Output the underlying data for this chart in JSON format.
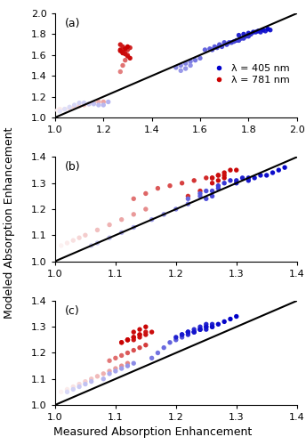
{
  "panels": [
    {
      "label": "(a)",
      "xlim": [
        1.0,
        2.0
      ],
      "ylim": [
        1.0,
        2.0
      ],
      "xticks": [
        1.0,
        1.2,
        1.4,
        1.6,
        1.8,
        2.0
      ],
      "yticks": [
        1.0,
        1.2,
        1.4,
        1.6,
        1.8,
        2.0
      ],
      "blue_x": [
        1.02,
        1.04,
        1.06,
        1.08,
        1.1,
        1.12,
        1.14,
        1.16,
        1.18,
        1.2,
        1.22,
        1.5,
        1.52,
        1.54,
        1.56,
        1.58,
        1.6,
        1.52,
        1.54,
        1.56,
        1.62,
        1.64,
        1.66,
        1.68,
        1.7,
        1.72,
        1.74,
        1.76,
        1.78,
        1.8,
        1.65,
        1.67,
        1.69,
        1.71,
        1.73,
        1.75,
        1.77,
        1.79,
        1.81,
        1.83,
        1.85,
        1.87,
        1.89,
        1.76,
        1.78,
        1.8,
        1.82,
        1.84,
        1.86,
        1.88
      ],
      "blue_y": [
        1.06,
        1.08,
        1.1,
        1.12,
        1.14,
        1.14,
        1.13,
        1.13,
        1.12,
        1.12,
        1.15,
        1.48,
        1.5,
        1.52,
        1.54,
        1.55,
        1.57,
        1.45,
        1.47,
        1.5,
        1.65,
        1.66,
        1.68,
        1.7,
        1.72,
        1.72,
        1.73,
        1.74,
        1.76,
        1.78,
        1.65,
        1.67,
        1.68,
        1.7,
        1.72,
        1.74,
        1.76,
        1.78,
        1.8,
        1.82,
        1.82,
        1.83,
        1.84,
        1.79,
        1.8,
        1.81,
        1.82,
        1.83,
        1.84,
        1.85
      ],
      "blue_time": [
        0.1,
        0.12,
        0.14,
        0.16,
        0.18,
        0.2,
        0.22,
        0.24,
        0.26,
        0.28,
        0.3,
        0.45,
        0.47,
        0.49,
        0.51,
        0.53,
        0.55,
        0.4,
        0.42,
        0.44,
        0.6,
        0.62,
        0.64,
        0.66,
        0.68,
        0.7,
        0.72,
        0.74,
        0.76,
        0.78,
        0.65,
        0.67,
        0.69,
        0.71,
        0.73,
        0.75,
        0.77,
        0.79,
        0.81,
        0.83,
        0.85,
        0.87,
        0.89,
        0.85,
        0.87,
        0.89,
        0.91,
        0.93,
        0.95,
        0.97
      ],
      "red_x": [
        1.01,
        1.02,
        1.04,
        1.06,
        1.08,
        1.1,
        1.12,
        1.14,
        1.16,
        1.18,
        1.2,
        1.27,
        1.28,
        1.29,
        1.3,
        1.28,
        1.29,
        1.3,
        1.31,
        1.28,
        1.27,
        1.27,
        1.28,
        1.29,
        1.3,
        1.31,
        1.28,
        1.27,
        1.29,
        1.3
      ],
      "red_y": [
        1.07,
        1.08,
        1.08,
        1.09,
        1.1,
        1.11,
        1.12,
        1.13,
        1.14,
        1.15,
        1.15,
        1.44,
        1.5,
        1.55,
        1.6,
        1.62,
        1.64,
        1.65,
        1.67,
        1.68,
        1.7,
        1.65,
        1.63,
        1.61,
        1.59,
        1.57,
        1.62,
        1.64,
        1.66,
        1.68
      ],
      "red_time": [
        0.05,
        0.08,
        0.11,
        0.15,
        0.18,
        0.21,
        0.24,
        0.27,
        0.3,
        0.33,
        0.36,
        0.5,
        0.55,
        0.6,
        0.65,
        0.7,
        0.75,
        0.8,
        0.85,
        0.88,
        0.9,
        0.92,
        0.93,
        0.94,
        0.95,
        0.96,
        0.97,
        0.98,
        0.99,
        1.0
      ]
    },
    {
      "label": "(b)",
      "xlim": [
        1.0,
        1.4
      ],
      "ylim": [
        1.0,
        1.4
      ],
      "xticks": [
        1.0,
        1.1,
        1.2,
        1.3,
        1.4
      ],
      "yticks": [
        1.0,
        1.1,
        1.2,
        1.3,
        1.4
      ],
      "blue_x": [
        1.06,
        1.07,
        1.09,
        1.11,
        1.13,
        1.16,
        1.18,
        1.2,
        1.22,
        1.22,
        1.24,
        1.24,
        1.25,
        1.26,
        1.27,
        1.27,
        1.28,
        1.29,
        1.3,
        1.31,
        1.32,
        1.3,
        1.32,
        1.33,
        1.34,
        1.35,
        1.36,
        1.37,
        1.38,
        1.25,
        1.26
      ],
      "blue_y": [
        1.06,
        1.07,
        1.09,
        1.11,
        1.13,
        1.16,
        1.18,
        1.2,
        1.22,
        1.24,
        1.25,
        1.26,
        1.27,
        1.27,
        1.28,
        1.29,
        1.3,
        1.31,
        1.31,
        1.32,
        1.32,
        1.3,
        1.31,
        1.32,
        1.33,
        1.33,
        1.34,
        1.35,
        1.36,
        1.24,
        1.25
      ],
      "blue_time": [
        0.2,
        0.23,
        0.26,
        0.3,
        0.35,
        0.4,
        0.45,
        0.5,
        0.55,
        0.58,
        0.62,
        0.65,
        0.68,
        0.71,
        0.74,
        0.76,
        0.79,
        0.82,
        0.85,
        0.87,
        0.9,
        0.88,
        0.9,
        0.92,
        0.93,
        0.94,
        0.95,
        0.96,
        0.97,
        0.7,
        0.72
      ],
      "red_x": [
        1.01,
        1.02,
        1.03,
        1.04,
        1.05,
        1.07,
        1.09,
        1.11,
        1.13,
        1.15,
        1.13,
        1.15,
        1.17,
        1.19,
        1.21,
        1.23,
        1.25,
        1.26,
        1.27,
        1.28,
        1.26,
        1.27,
        1.28,
        1.29,
        1.3,
        1.26,
        1.27,
        1.28,
        1.24,
        1.22
      ],
      "red_y": [
        1.06,
        1.07,
        1.08,
        1.09,
        1.1,
        1.12,
        1.14,
        1.16,
        1.18,
        1.2,
        1.24,
        1.26,
        1.28,
        1.29,
        1.3,
        1.31,
        1.32,
        1.32,
        1.33,
        1.33,
        1.32,
        1.33,
        1.34,
        1.35,
        1.35,
        1.3,
        1.31,
        1.32,
        1.27,
        1.25
      ],
      "red_time": [
        0.05,
        0.08,
        0.12,
        0.16,
        0.2,
        0.25,
        0.3,
        0.35,
        0.4,
        0.45,
        0.55,
        0.6,
        0.65,
        0.7,
        0.75,
        0.8,
        0.84,
        0.87,
        0.9,
        0.92,
        0.93,
        0.94,
        0.95,
        0.96,
        0.97,
        0.93,
        0.95,
        0.97,
        0.85,
        0.8
      ]
    },
    {
      "label": "(c)",
      "xlim": [
        1.0,
        1.4
      ],
      "ylim": [
        1.0,
        1.4
      ],
      "xticks": [
        1.0,
        1.1,
        1.2,
        1.3,
        1.4
      ],
      "yticks": [
        1.0,
        1.1,
        1.2,
        1.3,
        1.4
      ],
      "blue_x": [
        1.02,
        1.03,
        1.04,
        1.05,
        1.06,
        1.08,
        1.09,
        1.1,
        1.11,
        1.12,
        1.13,
        1.16,
        1.17,
        1.18,
        1.19,
        1.2,
        1.21,
        1.21,
        1.22,
        1.23,
        1.24,
        1.25,
        1.21,
        1.22,
        1.23,
        1.24,
        1.25,
        1.26,
        1.22,
        1.23,
        1.24,
        1.25,
        1.26,
        1.2,
        1.21,
        1.22,
        1.23,
        1.24,
        1.25,
        1.26,
        1.27,
        1.28,
        1.29,
        1.3
      ],
      "blue_y": [
        1.05,
        1.06,
        1.07,
        1.08,
        1.09,
        1.1,
        1.12,
        1.13,
        1.14,
        1.15,
        1.16,
        1.18,
        1.2,
        1.22,
        1.24,
        1.25,
        1.26,
        1.27,
        1.28,
        1.28,
        1.29,
        1.3,
        1.27,
        1.28,
        1.29,
        1.3,
        1.31,
        1.31,
        1.27,
        1.28,
        1.29,
        1.29,
        1.3,
        1.26,
        1.27,
        1.28,
        1.28,
        1.29,
        1.3,
        1.3,
        1.31,
        1.32,
        1.33,
        1.34
      ],
      "blue_time": [
        0.15,
        0.18,
        0.21,
        0.24,
        0.27,
        0.3,
        0.33,
        0.36,
        0.39,
        0.42,
        0.45,
        0.52,
        0.55,
        0.58,
        0.61,
        0.64,
        0.67,
        0.69,
        0.71,
        0.73,
        0.75,
        0.77,
        0.78,
        0.8,
        0.82,
        0.84,
        0.86,
        0.87,
        0.84,
        0.86,
        0.88,
        0.89,
        0.91,
        0.88,
        0.9,
        0.92,
        0.93,
        0.94,
        0.95,
        0.96,
        0.97,
        0.98,
        0.99,
        1.0
      ],
      "red_x": [
        1.01,
        1.02,
        1.03,
        1.04,
        1.05,
        1.06,
        1.07,
        1.08,
        1.09,
        1.1,
        1.11,
        1.12,
        1.09,
        1.1,
        1.11,
        1.12,
        1.13,
        1.14,
        1.15,
        1.11,
        1.12,
        1.13,
        1.14,
        1.15,
        1.13,
        1.14,
        1.15,
        1.16,
        1.13,
        1.14,
        1.15,
        1.12,
        1.13,
        1.14,
        1.11,
        1.12
      ],
      "red_y": [
        1.05,
        1.06,
        1.07,
        1.08,
        1.09,
        1.1,
        1.11,
        1.12,
        1.13,
        1.14,
        1.15,
        1.16,
        1.17,
        1.18,
        1.19,
        1.2,
        1.21,
        1.22,
        1.23,
        1.24,
        1.25,
        1.26,
        1.27,
        1.28,
        1.25,
        1.26,
        1.27,
        1.28,
        1.28,
        1.29,
        1.3,
        1.25,
        1.26,
        1.27,
        1.24,
        1.25
      ],
      "red_time": [
        0.05,
        0.08,
        0.11,
        0.15,
        0.19,
        0.23,
        0.27,
        0.31,
        0.35,
        0.39,
        0.43,
        0.47,
        0.53,
        0.57,
        0.61,
        0.65,
        0.69,
        0.73,
        0.77,
        0.8,
        0.83,
        0.86,
        0.89,
        0.91,
        0.92,
        0.93,
        0.94,
        0.95,
        0.96,
        0.97,
        0.98,
        0.96,
        0.97,
        0.98,
        0.99,
        1.0
      ]
    }
  ],
  "blue_color": [
    0,
    0,
    200
  ],
  "red_color": [
    200,
    0,
    0
  ],
  "marker_size": 15,
  "ylabel": "Modeled Absorption Enhancement",
  "xlabel": "Measured Absorption Enhancement",
  "legend_labels": [
    "λ = 405 nm",
    "λ = 781 nm"
  ],
  "legend_blue": "#0000CC",
  "legend_red": "#CC0000",
  "background_color": "#ffffff",
  "panel_label_fontsize": 9,
  "tick_fontsize": 8,
  "axis_label_fontsize": 9,
  "legend_fontsize": 8,
  "linewidth": 1.5
}
